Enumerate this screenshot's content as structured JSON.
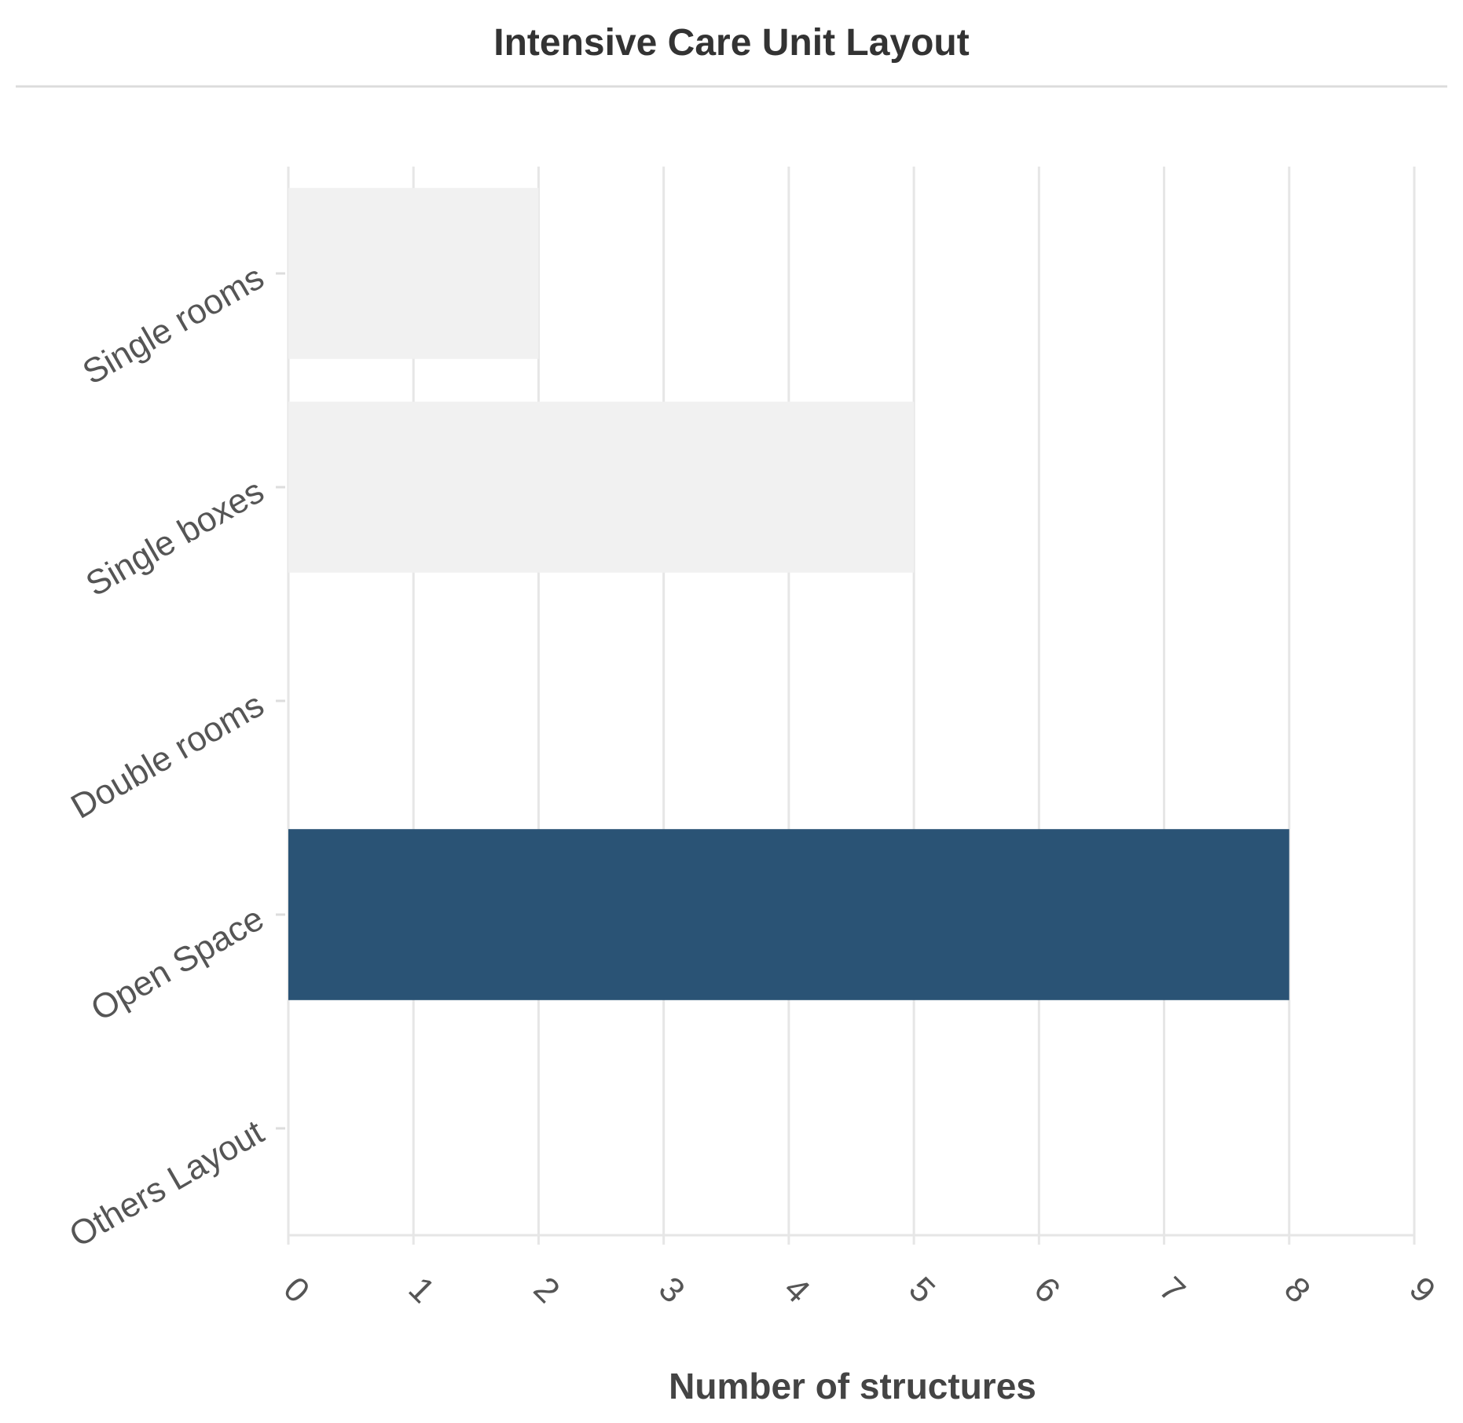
{
  "chart_data": {
    "type": "bar",
    "orientation": "horizontal",
    "title": "Intensive Care Unit Layout",
    "xlabel": "Number of structures",
    "ylabel": "",
    "categories": [
      "Single rooms",
      "Single boxes",
      "Double rooms",
      "Open Space",
      "Others Layout"
    ],
    "values": [
      2,
      5,
      0,
      8,
      0
    ],
    "bar_colors": [
      "#f1f1f1",
      "#f1f1f1",
      "#f1f1f1",
      "#2a5375",
      "#f1f1f1"
    ],
    "highlight_color": "#2a5375",
    "muted_color": "#f1f1f1",
    "xlim": [
      0,
      9
    ],
    "xticks": [
      "0",
      "1",
      "2",
      "3",
      "4",
      "5",
      "6",
      "7",
      "8",
      "9"
    ],
    "grid": true,
    "legend": "none"
  }
}
